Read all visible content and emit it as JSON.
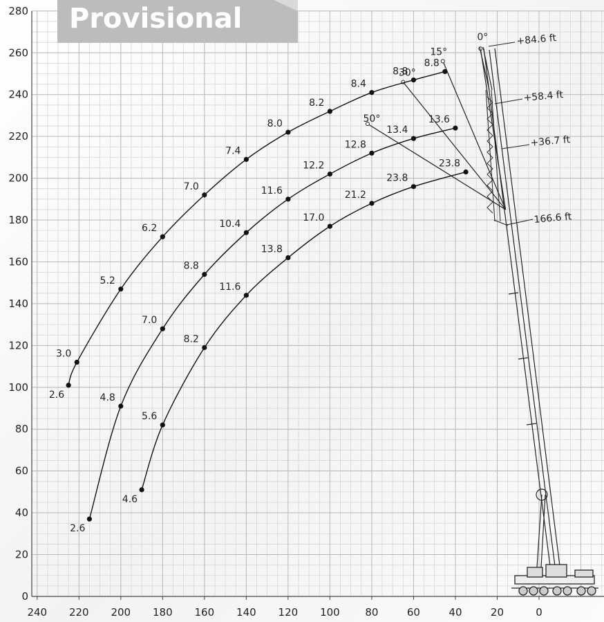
{
  "banner": {
    "label": "Provisional"
  },
  "chart_data": {
    "type": "line",
    "title": "",
    "xlabel": "",
    "ylabel": "",
    "x_reversed": true,
    "xlim": [
      -30,
      240
    ],
    "ylim": [
      0,
      280
    ],
    "x_ticks": [
      240,
      220,
      200,
      180,
      160,
      140,
      120,
      100,
      80,
      60,
      40,
      20,
      0
    ],
    "y_ticks": [
      0,
      20,
      40,
      60,
      80,
      100,
      120,
      140,
      160,
      180,
      200,
      220,
      240,
      260,
      280
    ],
    "grid": true,
    "series": [
      {
        "points": [
          {
            "x": 225,
            "y": 101,
            "label": "2.6"
          },
          {
            "x": 221,
            "y": 112,
            "label": "3.0"
          },
          {
            "x": 200,
            "y": 147,
            "label": "5.2"
          },
          {
            "x": 180,
            "y": 172,
            "label": "6.2"
          },
          {
            "x": 160,
            "y": 192,
            "label": "7.0"
          },
          {
            "x": 140,
            "y": 209,
            "label": "7.4"
          },
          {
            "x": 120,
            "y": 222,
            "label": "8.0"
          },
          {
            "x": 100,
            "y": 232,
            "label": "8.2"
          },
          {
            "x": 80,
            "y": 241,
            "label": "8.4"
          },
          {
            "x": 60,
            "y": 247,
            "label": "8.8"
          },
          {
            "x": 45,
            "y": 251,
            "label": "8.8"
          }
        ]
      },
      {
        "points": [
          {
            "x": 215,
            "y": 37,
            "label": "2.6"
          },
          {
            "x": 200,
            "y": 91,
            "label": "4.8"
          },
          {
            "x": 180,
            "y": 128,
            "label": "7.0"
          },
          {
            "x": 160,
            "y": 154,
            "label": "8.8"
          },
          {
            "x": 140,
            "y": 174,
            "label": "10.4"
          },
          {
            "x": 120,
            "y": 190,
            "label": "11.6"
          },
          {
            "x": 100,
            "y": 202,
            "label": "12.2"
          },
          {
            "x": 80,
            "y": 212,
            "label": "12.8"
          },
          {
            "x": 60,
            "y": 219,
            "label": "13.4"
          },
          {
            "x": 40,
            "y": 224,
            "label": "13.6"
          }
        ]
      },
      {
        "points": [
          {
            "x": 190,
            "y": 51,
            "label": "4.6"
          },
          {
            "x": 180,
            "y": 82,
            "label": "5.6"
          },
          {
            "x": 160,
            "y": 119,
            "label": "8.2"
          },
          {
            "x": 140,
            "y": 144,
            "label": "11.6"
          },
          {
            "x": 120,
            "y": 162,
            "label": "13.8"
          },
          {
            "x": 100,
            "y": 177,
            "label": "17.0"
          },
          {
            "x": 80,
            "y": 188,
            "label": "21.2"
          },
          {
            "x": 60,
            "y": 196,
            "label": "23.8"
          },
          {
            "x": 35,
            "y": 203,
            "label": "23.8"
          }
        ]
      }
    ],
    "angle_labels": [
      {
        "x": 27,
        "y": 266,
        "label": "0°"
      },
      {
        "x": 48,
        "y": 259,
        "label": "15°"
      },
      {
        "x": 63,
        "y": 249,
        "label": "30°"
      },
      {
        "x": 80,
        "y": 227,
        "label": "50°"
      }
    ],
    "boom_tip": {
      "x": 16,
      "y": 185
    },
    "jib_tips": [
      {
        "x": 28,
        "y": 262
      },
      {
        "x": 46,
        "y": 256
      },
      {
        "x": 65,
        "y": 246
      },
      {
        "x": 82,
        "y": 226
      }
    ],
    "extension_labels": [
      "+84.6 ft",
      "+58.4 ft",
      "+36.7 ft",
      "166.6 ft"
    ]
  }
}
